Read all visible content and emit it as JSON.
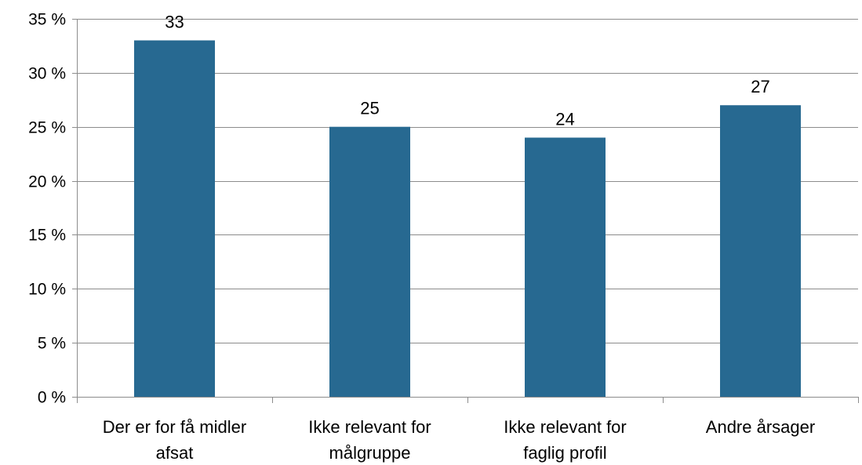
{
  "chart_data": {
    "type": "bar",
    "title": "",
    "xlabel": "",
    "ylabel": "",
    "categories": [
      [
        "Der er for få midler",
        "afsat"
      ],
      [
        "Ikke relevant for",
        "målgruppe"
      ],
      [
        "Ikke relevant for",
        "faglig profil"
      ],
      [
        "Andre årsager"
      ]
    ],
    "values": [
      33,
      25,
      24,
      27
    ],
    "data_labels": [
      "33",
      "25",
      "24",
      "27"
    ],
    "ylim": [
      0,
      35
    ],
    "yticks": [
      0,
      5,
      10,
      15,
      20,
      25,
      30,
      35
    ],
    "ytick_labels": [
      "0 %",
      "5 %",
      "10 %",
      "15 %",
      "20 %",
      "25 %",
      "30 %",
      "35 %"
    ],
    "grid": true,
    "legend": "none",
    "bar_color": "#276991",
    "grid_color": "#8c8c8c"
  }
}
